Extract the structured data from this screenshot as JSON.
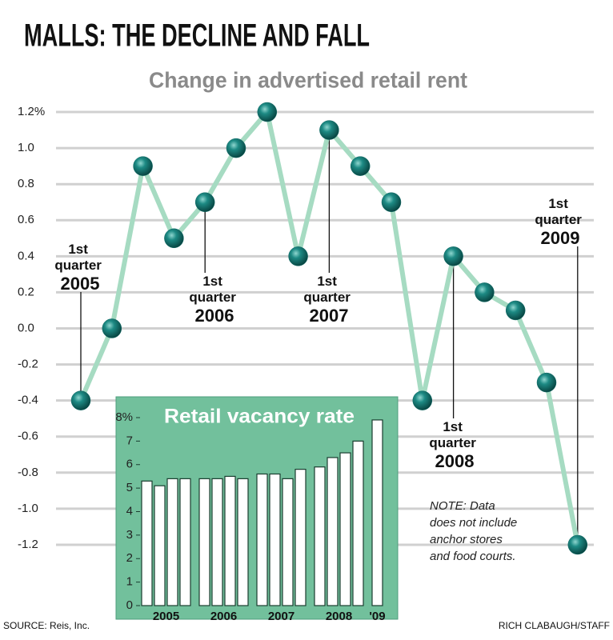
{
  "chart_data": [
    {
      "type": "line",
      "title": "MALLS: THE DECLINE AND FALL",
      "subtitle": "Change in advertised retail rent",
      "categories": [
        "1st quarter 2005",
        null,
        null,
        null,
        "1st quarter 2006",
        null,
        null,
        null,
        "1st quarter 2007",
        null,
        null,
        null,
        "1st quarter 2008",
        null,
        null,
        null,
        "1st quarter 2009"
      ],
      "values": [
        -0.4,
        0.0,
        0.9,
        0.5,
        0.7,
        1.0,
        1.2,
        0.4,
        1.1,
        0.9,
        0.7,
        -0.4,
        0.4,
        0.2,
        0.1,
        -0.3,
        -1.2
      ],
      "color": "#0f6b66",
      "line_color": "#a6dbc2",
      "ylim": [
        -1.3,
        1.3
      ],
      "yticks": [
        {
          "value": 1.2,
          "label": "1.2%"
        },
        {
          "value": 1.0,
          "label": "1.0"
        },
        0.8,
        0.6,
        0.4,
        0.2,
        {
          "value": 0.0,
          "label": "0.0"
        },
        -0.2,
        -0.4,
        -0.6,
        -0.8,
        {
          "value": -1.0,
          "label": "-1.0"
        },
        -1.2
      ],
      "grid": true,
      "note": [
        "NOTE: Data",
        "does not include",
        "anchor stores",
        "and food courts."
      ]
    },
    {
      "type": "bar",
      "title": "Retail vacancy rate",
      "groups": [
        {
          "name": "2005",
          "values": [
            5.3,
            5.1,
            5.4,
            5.4
          ]
        },
        {
          "name": "2006",
          "values": [
            5.4,
            5.4,
            5.5,
            5.4
          ]
        },
        {
          "name": "2007",
          "values": [
            5.6,
            5.6,
            5.4,
            5.8
          ]
        },
        {
          "name": "2008",
          "values": [
            5.9,
            6.3,
            6.5,
            7.0
          ]
        },
        {
          "name": "'09",
          "values": [
            7.9
          ]
        }
      ],
      "color": "#ffffff",
      "background": "#72c09c",
      "ylim": [
        0,
        8
      ],
      "yticks": [
        {
          "value": 8,
          "label": "8%"
        },
        7,
        6,
        5,
        4,
        3,
        2,
        1,
        0
      ]
    }
  ],
  "source": "SOURCE: Reis, Inc.",
  "credit": "RICH CLABAUGH/STAFF"
}
